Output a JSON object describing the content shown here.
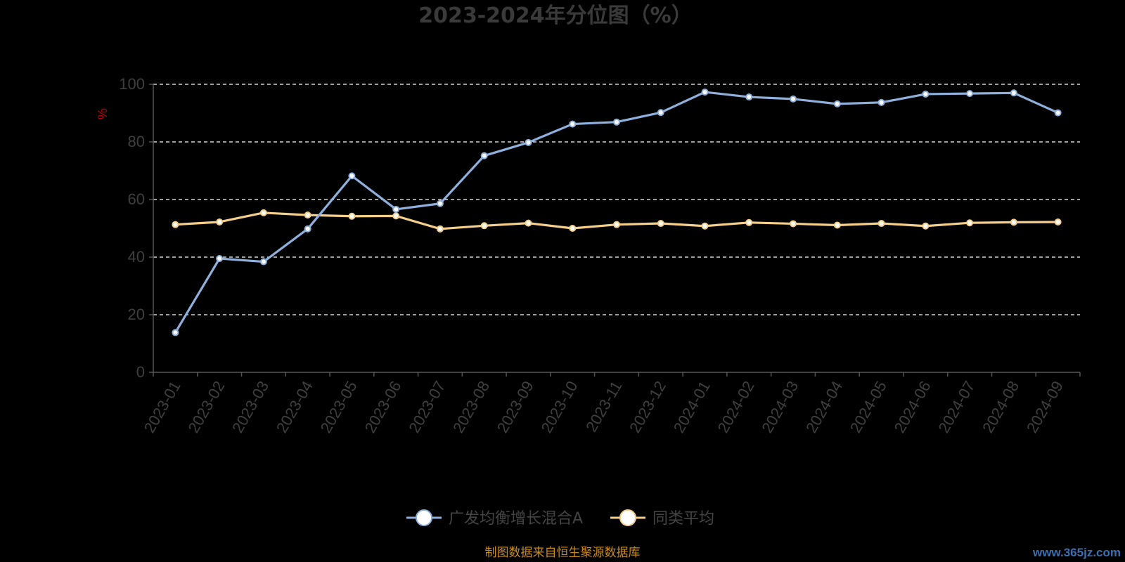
{
  "chart_data": {
    "type": "line",
    "title": "2023-2024年分位图（%）",
    "ylabel": "%",
    "xlabel": "",
    "ylim": [
      0,
      100
    ],
    "yticks": [
      0,
      20,
      40,
      60,
      80,
      100
    ],
    "grid": true,
    "legend_position": "bottom",
    "categories": [
      "2023-01",
      "2023-02",
      "2023-03",
      "2023-04",
      "2023-05",
      "2023-06",
      "2023-07",
      "2023-08",
      "2023-09",
      "2023-10",
      "2023-11",
      "2023-12",
      "2024-01",
      "2024-02",
      "2024-03",
      "2024-04",
      "2024-05",
      "2024-06",
      "2024-07",
      "2024-08",
      "2024-09"
    ],
    "series": [
      {
        "name": "广发均衡增长混合A",
        "color": "#8fb0dc",
        "values": [
          13.8,
          39.5,
          38.4,
          49.8,
          68.2,
          56.6,
          58.6,
          75.2,
          79.8,
          86.2,
          86.9,
          90.2,
          97.3,
          95.6,
          94.9,
          93.2,
          93.7,
          96.6,
          96.8,
          97.0,
          90.1
        ]
      },
      {
        "name": "同类平均",
        "color": "#f5cf8a",
        "values": [
          51.3,
          52.2,
          55.4,
          54.6,
          54.2,
          54.3,
          49.8,
          50.9,
          51.8,
          50.0,
          51.3,
          51.7,
          50.8,
          52.0,
          51.6,
          51.1,
          51.7,
          50.8,
          51.9,
          52.1,
          52.2
        ]
      }
    ]
  },
  "footer": {
    "source": "制图数据来自恒生聚源数据库",
    "watermark": "www.365jz.com"
  }
}
